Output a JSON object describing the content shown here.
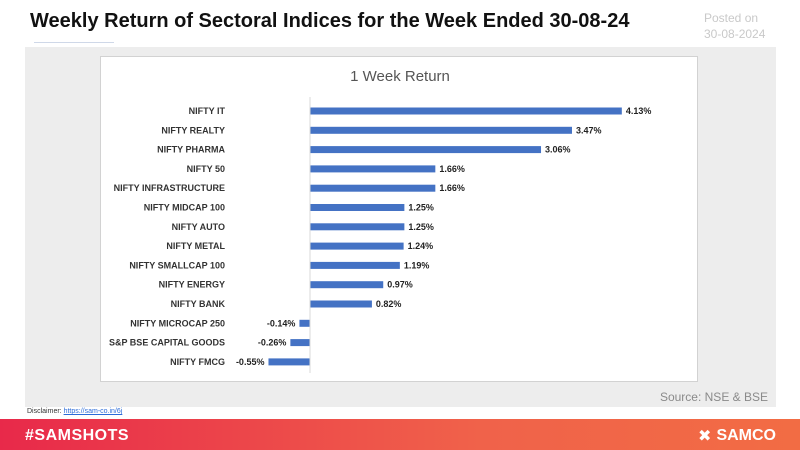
{
  "header": {
    "title": "Weekly Return of Sectoral Indices for the Week Ended 30-08-24",
    "posted_label": "Posted on",
    "posted_date": "30-08-2024"
  },
  "source": "Source: NSE & BSE",
  "disclaimer": {
    "label": "Disclaimer:",
    "link_text": "https://sam-co.in/6j"
  },
  "footer": {
    "hashtag": "#SAMSHOTS",
    "brand": "SAMCO",
    "brand_icon": "samco-logo-icon"
  },
  "colors": {
    "bar": "#4472c4",
    "footer_start": "#e8294a",
    "footer_end": "#f26c44"
  },
  "chart_data": {
    "type": "bar",
    "orientation": "horizontal",
    "title": "1 Week Return",
    "categories": [
      "NIFTY IT",
      "NIFTY REALTY",
      "NIFTY PHARMA",
      "NIFTY 50",
      "NIFTY INFRASTRUCTURE",
      "NIFTY MIDCAP 100",
      "NIFTY AUTO",
      "NIFTY METAL",
      "NIFTY SMALLCAP 100",
      "NIFTY ENERGY",
      "NIFTY BANK",
      "NIFTY MICROCAP 250",
      "S&P BSE CAPITAL GOODS",
      "NIFTY FMCG"
    ],
    "values": [
      4.13,
      3.47,
      3.06,
      1.66,
      1.66,
      1.25,
      1.25,
      1.24,
      1.19,
      0.97,
      0.82,
      -0.14,
      -0.26,
      -0.55
    ],
    "labels": [
      "4.13%",
      "3.47%",
      "3.06%",
      "1.66%",
      "1.66%",
      "1.25%",
      "1.25%",
      "1.24%",
      "1.19%",
      "0.97%",
      "0.82%",
      "-0.14%",
      "-0.26%",
      "-0.55%"
    ],
    "unit": "%",
    "legend": "none",
    "grid": false
  }
}
